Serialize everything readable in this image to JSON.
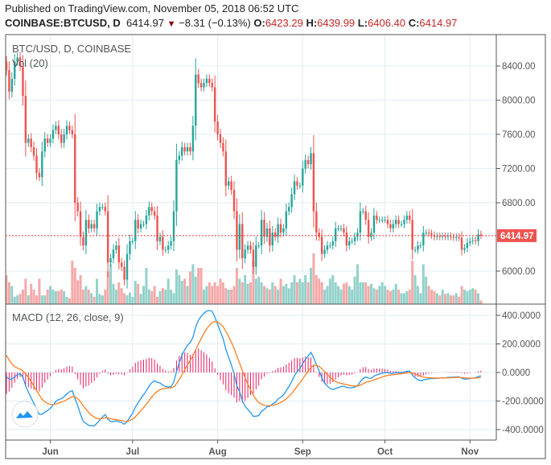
{
  "header": {
    "published": "Published on TradingView.com, November 05, 2018 06:52 UTC",
    "symbol": "COINBASE:BTCUSD, D",
    "last": "6414.97",
    "change": "−8.31 (−0.13%)",
    "o_label": "O:",
    "o": "6423.29",
    "h_label": "H:",
    "h": "6439.99",
    "l_label": "L:",
    "l": "6406.40",
    "c_label": "C:",
    "c": "6414.97"
  },
  "colors": {
    "up": "#26a69a",
    "down": "#ef5350",
    "up_vol": "#93d2cb",
    "down_vol": "#f5a9a9",
    "macd": "#2196f3",
    "signal": "#ff7f1f",
    "hist": "#e91e63",
    "grid": "#e1ecf2"
  },
  "chart_data": [
    {
      "type": "candlestick",
      "title": "BTC/USD, D, COINBASE",
      "volume_label": "Vol (20)",
      "start_date": "2018-05-16",
      "y_ticks": [
        "8400.00",
        "8000.00",
        "7600.00",
        "7200.00",
        "6800.00",
        "6000.00"
      ],
      "ylim": [
        5800,
        8800
      ],
      "last_price_label": "6414.97",
      "last_price": 6414.97,
      "close": [
        8350,
        8100,
        8250,
        8450,
        8500,
        8400,
        8050,
        7500,
        7550,
        7450,
        7350,
        7150,
        7100,
        7400,
        7550,
        7500,
        7550,
        7650,
        7700,
        7600,
        7500,
        7600,
        7700,
        7650,
        7600,
        6800,
        6700,
        6400,
        6300,
        6600,
        6500,
        6550,
        6500,
        6700,
        6750,
        6750,
        6700,
        6100,
        6150,
        6250,
        6300,
        6100,
        6050,
        5900,
        6200,
        6350,
        6350,
        6600,
        6500,
        6550,
        6550,
        6650,
        6750,
        6700,
        6650,
        6350,
        6400,
        6250,
        6250,
        6300,
        6350,
        6700,
        7300,
        7350,
        7450,
        7400,
        7450,
        7400,
        7700,
        8300,
        8200,
        8150,
        8200,
        8250,
        8200,
        8150,
        7750,
        7600,
        7500,
        7400,
        7000,
        7050,
        6950,
        6700,
        6250,
        6550,
        6150,
        6250,
        6300,
        6250,
        6050,
        6300,
        6300,
        6600,
        6400,
        6500,
        6300,
        6450,
        6400,
        6550,
        6450,
        6500,
        6700,
        6750,
        6900,
        7050,
        7000,
        7000,
        7200,
        7300,
        7250,
        7380,
        6700,
        6450,
        6400,
        6200,
        6250,
        6300,
        6300,
        6350,
        6500,
        6500,
        6500,
        6450,
        6300,
        6350,
        6350,
        6400,
        6450,
        6700,
        6700,
        6600,
        6400,
        6450,
        6650,
        6600,
        6600,
        6600,
        6600,
        6550,
        6500,
        6550,
        6600,
        6550,
        6550,
        6600,
        6650,
        6600,
        6250,
        6250,
        6300,
        6300,
        6450,
        6450,
        6440,
        6420,
        6400,
        6410,
        6400,
        6410,
        6400,
        6410,
        6400,
        6390,
        6400,
        6390,
        6250,
        6270,
        6330,
        6350,
        6360,
        6350,
        6430,
        6414.97
      ],
      "volume_relative": [
        40,
        30,
        25,
        10,
        12,
        14,
        20,
        35,
        12,
        28,
        20,
        12,
        35,
        12,
        12,
        20,
        25,
        20,
        18,
        18,
        20,
        18,
        10,
        8,
        60,
        50,
        33,
        40,
        20,
        25,
        20,
        15,
        10,
        35,
        14,
        12,
        20,
        45,
        55,
        28,
        20,
        30,
        22,
        15,
        12,
        16,
        10,
        32,
        28,
        14,
        25,
        50,
        20,
        18,
        25,
        10,
        18,
        22,
        20,
        35,
        20,
        15,
        48,
        40,
        32,
        35,
        25,
        45,
        55,
        38,
        50,
        50,
        20,
        25,
        30,
        25,
        30,
        25,
        35,
        30,
        22,
        20,
        20,
        25,
        50,
        35,
        30,
        40,
        28,
        30,
        60,
        35,
        38,
        30,
        25,
        22,
        20,
        30,
        25,
        20,
        35,
        25,
        28,
        22,
        30,
        40,
        30,
        35,
        30,
        40,
        30,
        50,
        70,
        40,
        35,
        30,
        20,
        25,
        35,
        40,
        30,
        25,
        20,
        28,
        30,
        25,
        20,
        38,
        55,
        30,
        30,
        30,
        25,
        28,
        22,
        20,
        25,
        30,
        25,
        20,
        18,
        20,
        28,
        20,
        15,
        15,
        18,
        20,
        60,
        40,
        25,
        15,
        55,
        38,
        25,
        20,
        18,
        15,
        12,
        20,
        14,
        15,
        12,
        12,
        15,
        10,
        25,
        20,
        18,
        20,
        22,
        20,
        15,
        5
      ],
      "x_ticks": [
        {
          "label": "Jun",
          "index": 16
        },
        {
          "label": "Jul",
          "index": 46
        },
        {
          "label": "Aug",
          "index": 77
        },
        {
          "label": "Sep",
          "index": 108
        },
        {
          "label": "Oct",
          "index": 138
        },
        {
          "label": "Nov",
          "index": 169
        }
      ]
    },
    {
      "type": "line",
      "title": "MACD (12, 26, close, 9)",
      "series": [
        {
          "name": "MACD"
        },
        {
          "name": "Signal"
        },
        {
          "name": "Histogram"
        }
      ],
      "macd_initial": {
        "macd": -30,
        "signal": 120
      },
      "y_ticks": [
        "400.0000",
        "200.0000",
        "0.0000",
        "-200.0000",
        "-400.0000"
      ],
      "ylim": [
        -470,
        480
      ]
    }
  ]
}
